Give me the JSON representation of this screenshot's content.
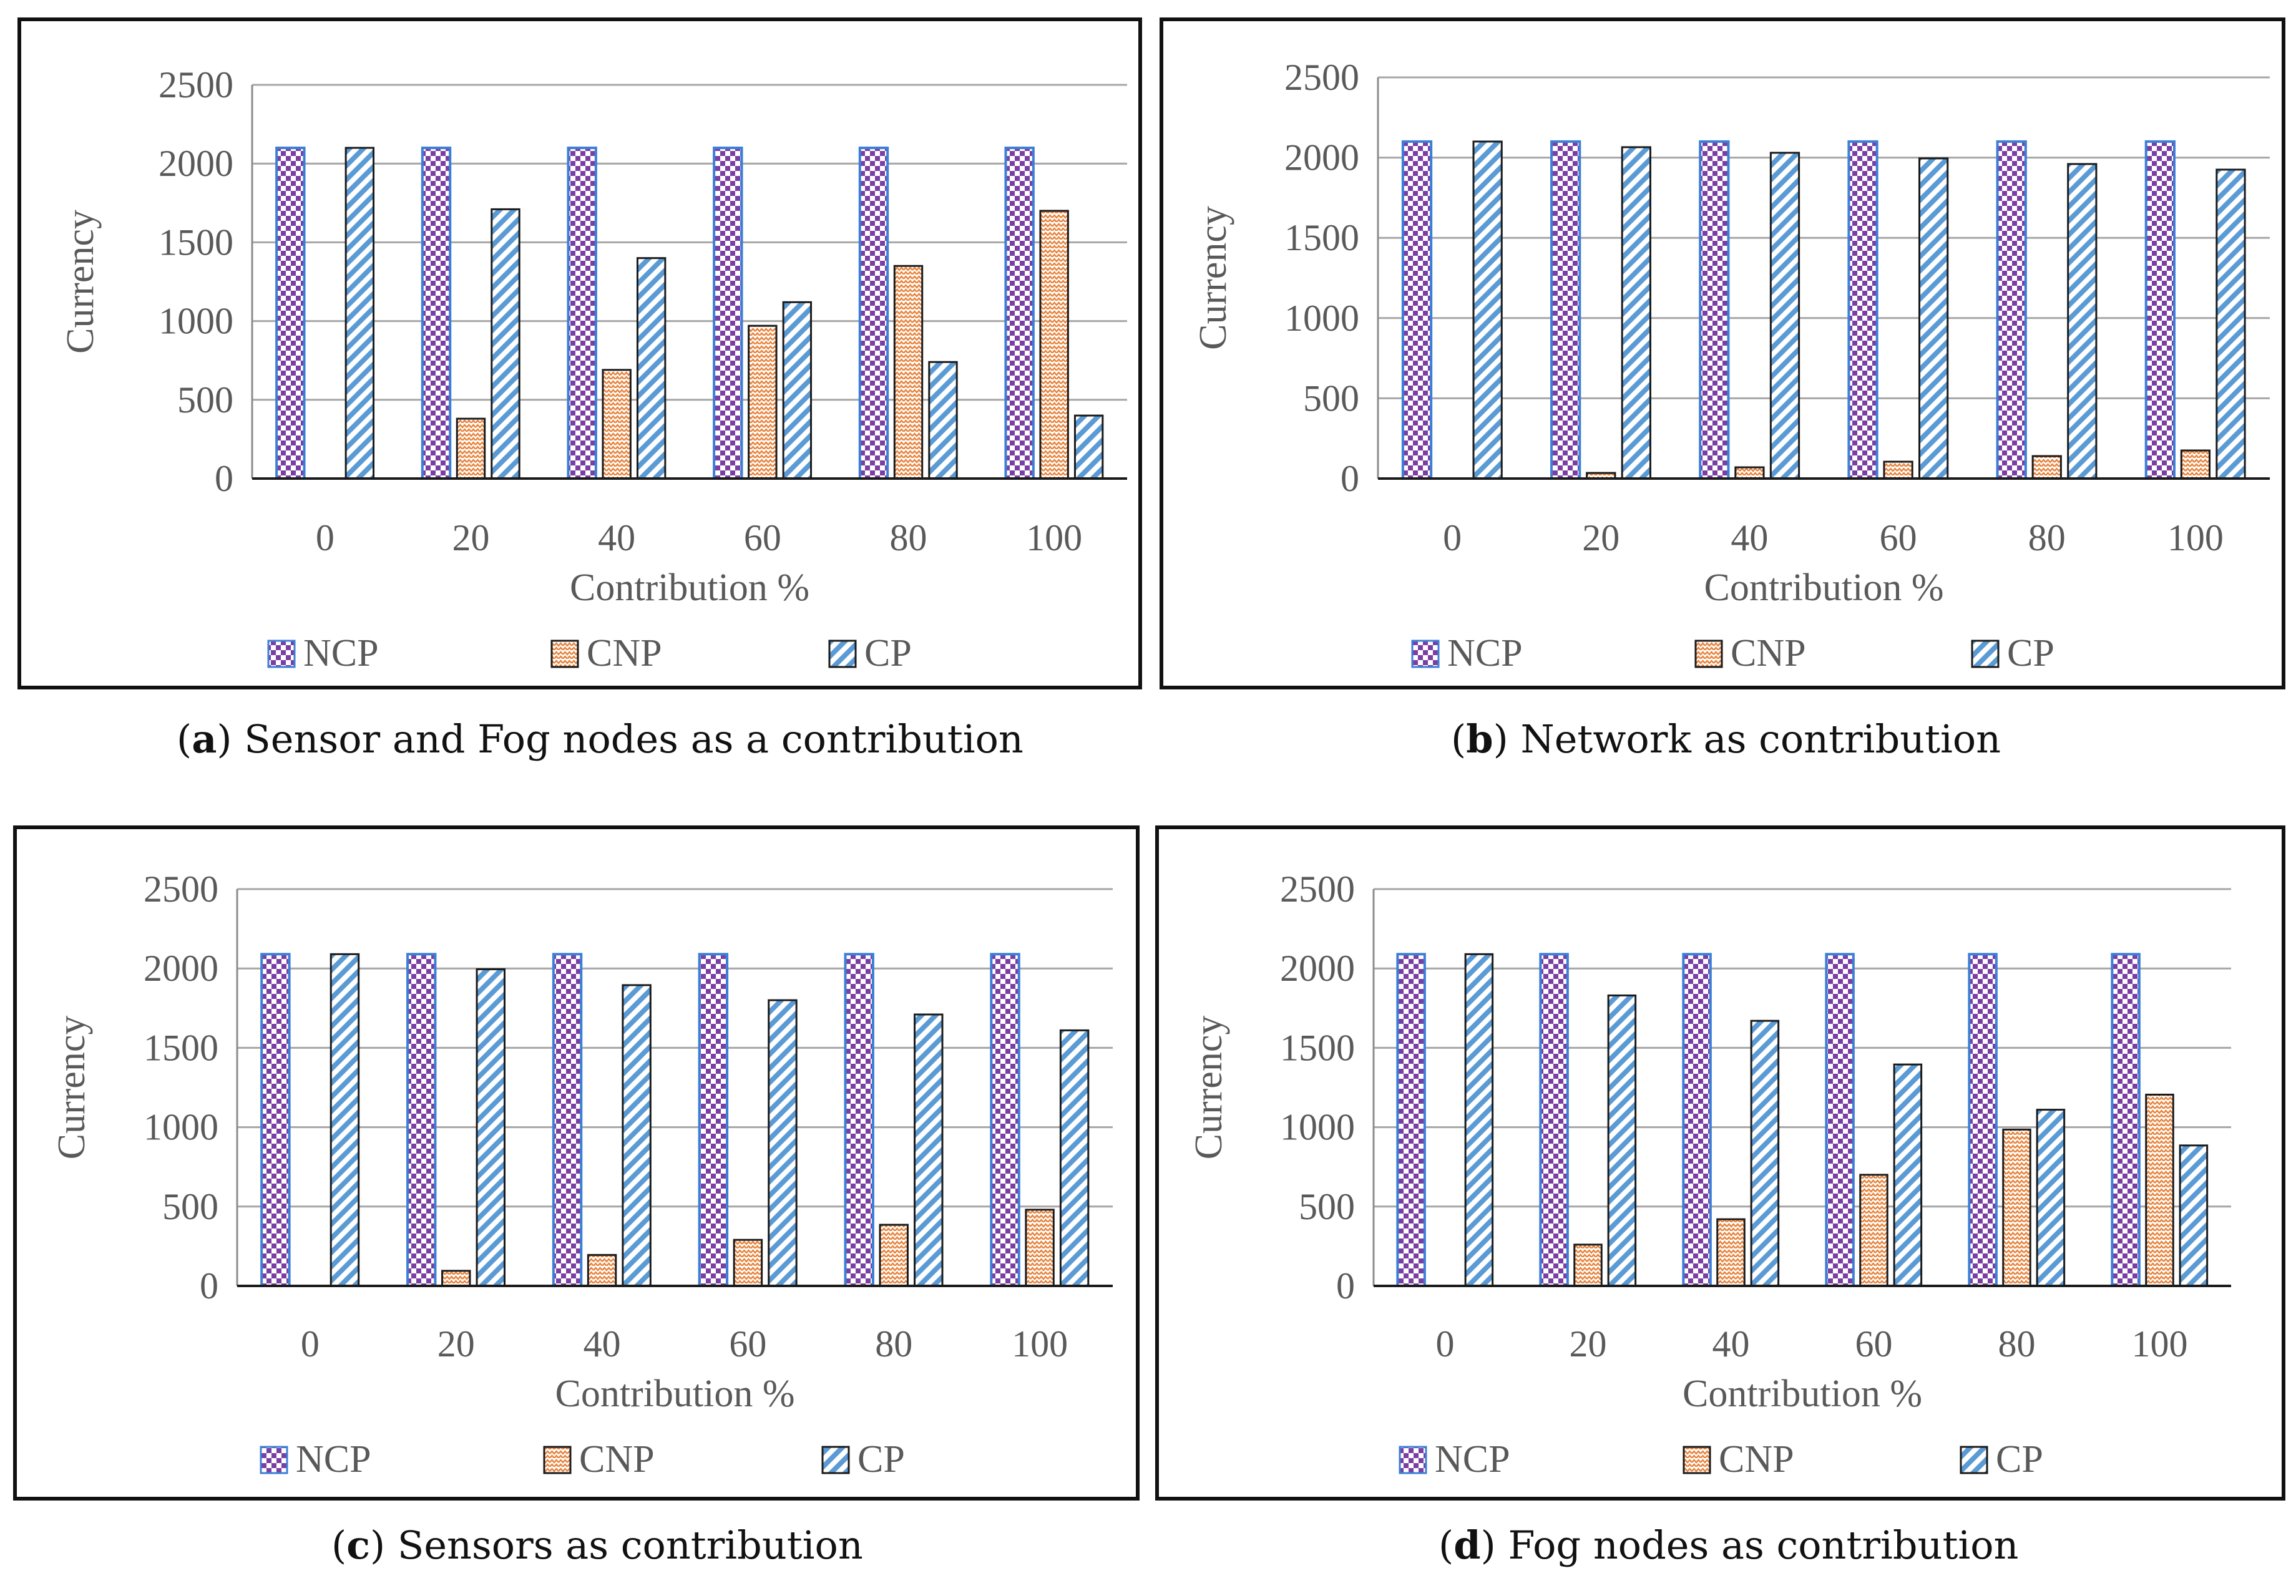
{
  "colors": {
    "ncp_fill": "#7b3fa4",
    "ncp_border": "#3d7fd6",
    "cnp_fill": "#e8823a",
    "cp_fill": "#5b9bd5",
    "grid": "#a6a6a6",
    "axis_text": "#595959"
  },
  "legend": [
    "NCP",
    "CNP",
    "CP"
  ],
  "chart_data": [
    {
      "id": "a",
      "type": "bar",
      "caption_letter": "a",
      "caption_text": "Sensor and Fog nodes as a contribution",
      "xlabel": "Contribution %",
      "ylabel": "Currency",
      "categories": [
        "0",
        "20",
        "40",
        "60",
        "80",
        "100"
      ],
      "ylim": [
        0,
        2500
      ],
      "yticks": [
        "0",
        "500",
        "1000",
        "1500",
        "2000",
        "2500"
      ],
      "series": [
        {
          "name": "NCP",
          "values": [
            2100,
            2100,
            2100,
            2100,
            2100,
            2100
          ]
        },
        {
          "name": "CNP",
          "values": [
            0,
            380,
            690,
            970,
            1350,
            1700
          ]
        },
        {
          "name": "CP",
          "values": [
            2100,
            1710,
            1400,
            1120,
            740,
            400
          ]
        }
      ]
    },
    {
      "id": "b",
      "type": "bar",
      "caption_letter": "b",
      "caption_text": "Network as contribution",
      "xlabel": "Contribution %",
      "ylabel": "Currency",
      "categories": [
        "0",
        "20",
        "40",
        "60",
        "80",
        "100"
      ],
      "ylim": [
        0,
        2500
      ],
      "yticks": [
        "0",
        "500",
        "1000",
        "1500",
        "2000",
        "2500"
      ],
      "series": [
        {
          "name": "NCP",
          "values": [
            2100,
            2100,
            2100,
            2100,
            2100,
            2100
          ]
        },
        {
          "name": "CNP",
          "values": [
            0,
            35,
            70,
            105,
            140,
            175
          ]
        },
        {
          "name": "CP",
          "values": [
            2100,
            2065,
            2030,
            1995,
            1960,
            1925
          ]
        }
      ]
    },
    {
      "id": "c",
      "type": "bar",
      "caption_letter": "c",
      "caption_text": "Sensors as contribution",
      "xlabel": "Contribution %",
      "ylabel": "Currency",
      "categories": [
        "0",
        "20",
        "40",
        "60",
        "80",
        "100"
      ],
      "ylim": [
        0,
        2500
      ],
      "yticks": [
        "0",
        "500",
        "1000",
        "1500",
        "2000",
        "2500"
      ],
      "series": [
        {
          "name": "NCP",
          "values": [
            2090,
            2090,
            2090,
            2090,
            2090,
            2090
          ]
        },
        {
          "name": "CNP",
          "values": [
            0,
            95,
            195,
            290,
            385,
            480
          ]
        },
        {
          "name": "CP",
          "values": [
            2090,
            1995,
            1895,
            1800,
            1710,
            1610
          ]
        }
      ]
    },
    {
      "id": "d",
      "type": "bar",
      "caption_letter": "d",
      "caption_text": "Fog nodes as contribution",
      "xlabel": "Contribution %",
      "ylabel": "Currency",
      "categories": [
        "0",
        "20",
        "40",
        "60",
        "80",
        "100"
      ],
      "ylim": [
        0,
        2500
      ],
      "yticks": [
        "0",
        "500",
        "1000",
        "1500",
        "2000",
        "2500"
      ],
      "series": [
        {
          "name": "NCP",
          "values": [
            2090,
            2090,
            2090,
            2090,
            2090,
            2090
          ]
        },
        {
          "name": "CNP",
          "values": [
            0,
            260,
            420,
            700,
            985,
            1205
          ]
        },
        {
          "name": "CP",
          "values": [
            2090,
            1830,
            1670,
            1395,
            1110,
            885
          ]
        }
      ]
    }
  ]
}
